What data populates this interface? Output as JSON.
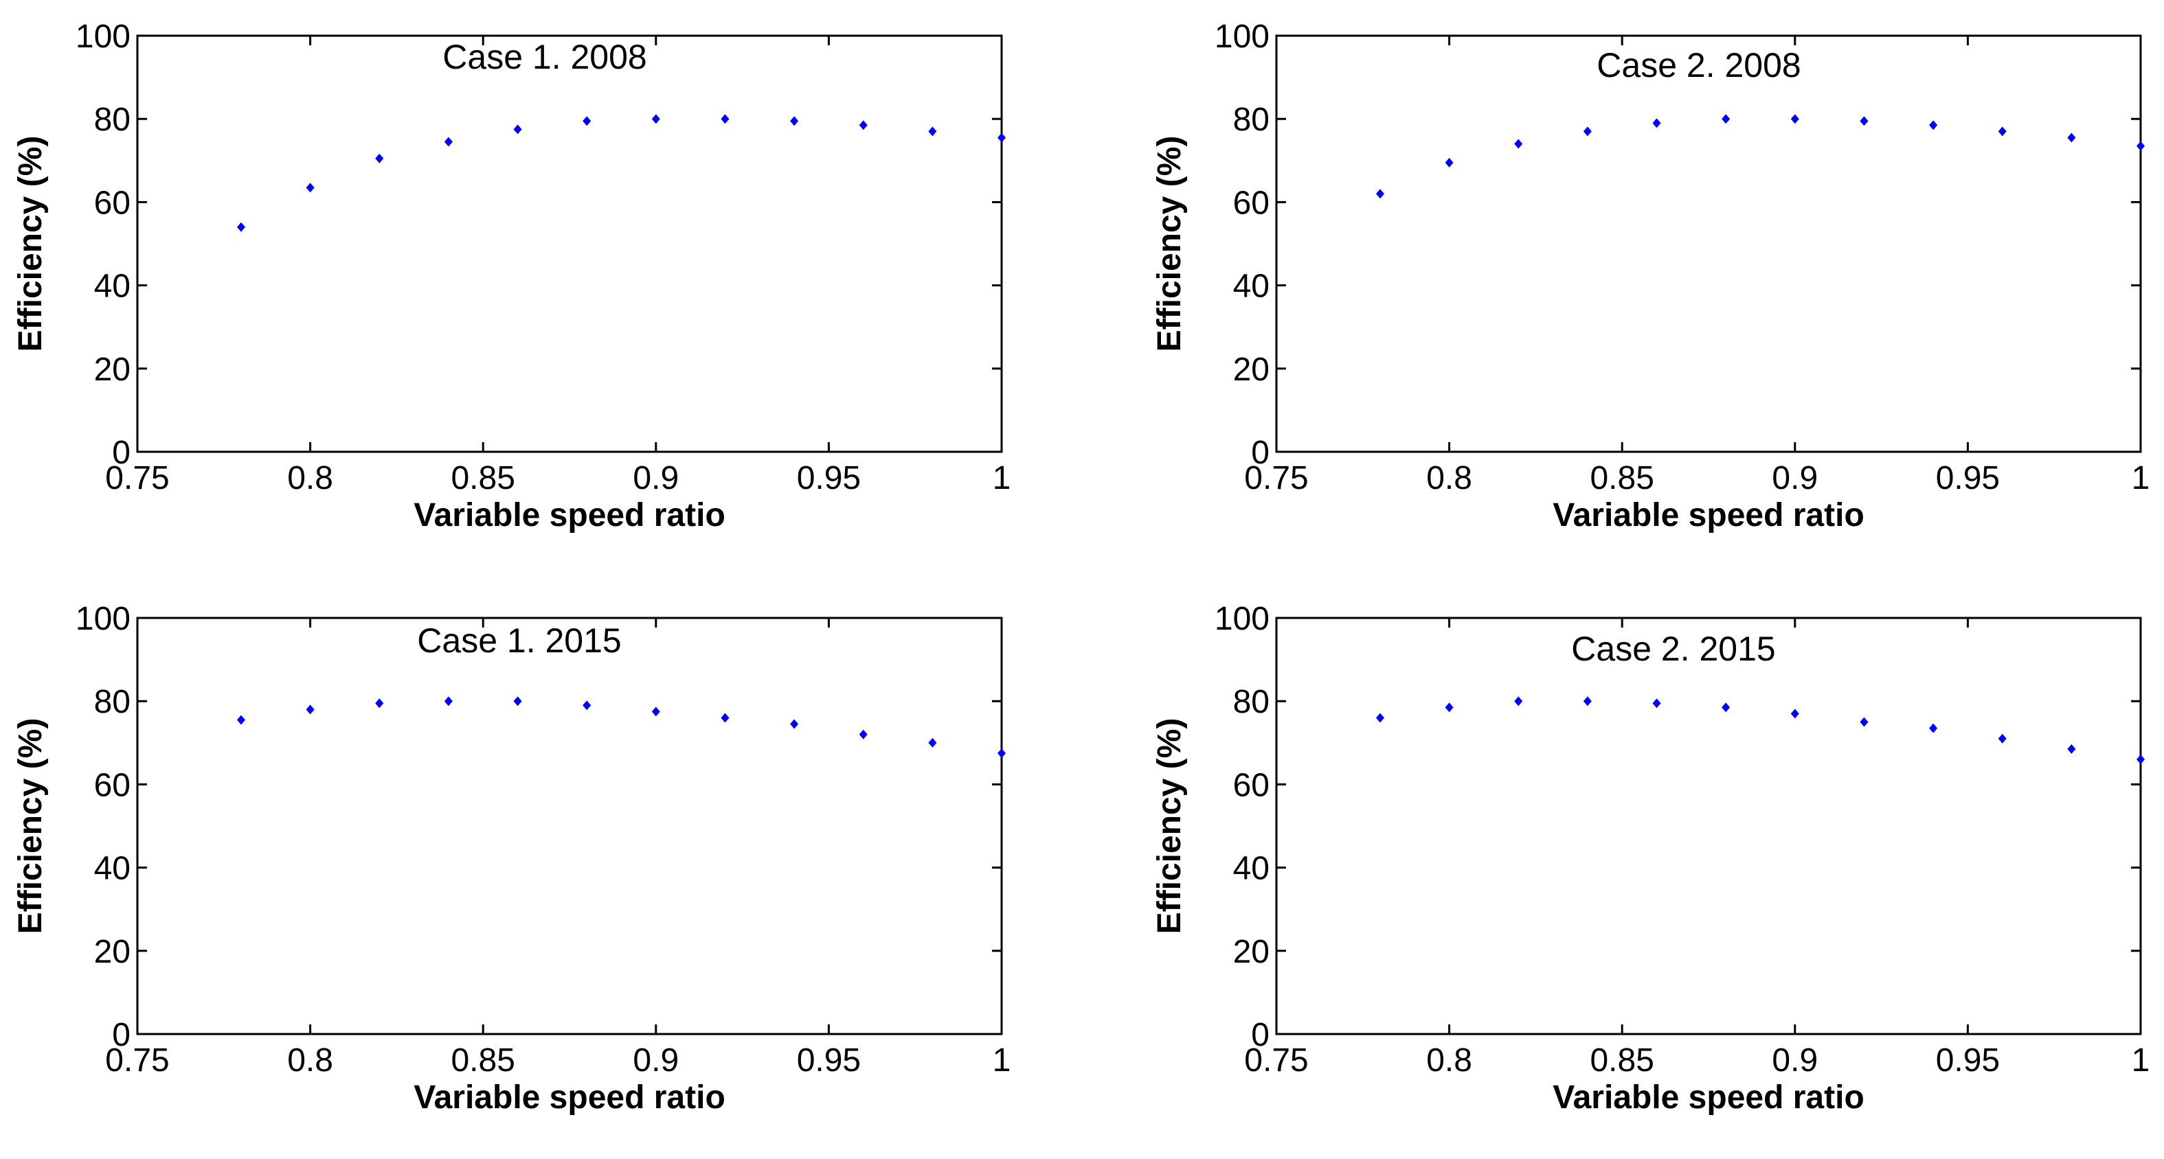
{
  "figure": {
    "marker_color": "#0000ff",
    "panels": 4
  },
  "chart_data": [
    {
      "type": "scatter",
      "title": "Case 1. 2008",
      "xlabel": "Variable speed ratio",
      "ylabel": "Efficiency (%)",
      "xlim": [
        0.75,
        1.0
      ],
      "ylim": [
        0,
        100
      ],
      "xticks": [
        "0.75",
        "0.8",
        "0.85",
        "0.9",
        "0.95",
        "1"
      ],
      "yticks": [
        "0",
        "20",
        "40",
        "60",
        "80",
        "100"
      ],
      "x": [
        0.78,
        0.8,
        0.82,
        0.84,
        0.86,
        0.88,
        0.9,
        0.92,
        0.94,
        0.96,
        0.98,
        1.0
      ],
      "y": [
        54,
        63.5,
        70.5,
        74.5,
        77.5,
        79.5,
        80,
        80,
        79.5,
        78.5,
        77,
        75.5
      ]
    },
    {
      "type": "scatter",
      "title": "Case 2. 2008",
      "xlabel": "Variable speed ratio",
      "ylabel": "Efficiency (%)",
      "xlim": [
        0.75,
        1.0
      ],
      "ylim": [
        0,
        100
      ],
      "xticks": [
        "0.75",
        "0.8",
        "0.85",
        "0.9",
        "0.95",
        "1"
      ],
      "yticks": [
        "0",
        "20",
        "40",
        "60",
        "80",
        "100"
      ],
      "x": [
        0.78,
        0.8,
        0.82,
        0.84,
        0.86,
        0.88,
        0.9,
        0.92,
        0.94,
        0.96,
        0.98,
        1.0
      ],
      "y": [
        62,
        69.5,
        74,
        77,
        79,
        80,
        80,
        79.5,
        78.5,
        77,
        75.5,
        73.5
      ]
    },
    {
      "type": "scatter",
      "title": "Case 1. 2015",
      "xlabel": "Variable speed ratio",
      "ylabel": "Efficiency (%)",
      "xlim": [
        0.75,
        1.0
      ],
      "ylim": [
        0,
        100
      ],
      "xticks": [
        "0.75",
        "0.8",
        "0.85",
        "0.9",
        "0.95",
        "1"
      ],
      "yticks": [
        "0",
        "20",
        "40",
        "60",
        "80",
        "100"
      ],
      "x": [
        0.78,
        0.8,
        0.82,
        0.84,
        0.86,
        0.88,
        0.9,
        0.92,
        0.94,
        0.96,
        0.98,
        1.0
      ],
      "y": [
        75.5,
        78,
        79.5,
        80,
        80,
        79,
        77.5,
        76,
        74.5,
        72,
        70,
        67.5
      ]
    },
    {
      "type": "scatter",
      "title": "Case 2. 2015",
      "xlabel": "Variable speed ratio",
      "ylabel": "Efficiency (%)",
      "xlim": [
        0.75,
        1.0
      ],
      "ylim": [
        0,
        100
      ],
      "xticks": [
        "0.75",
        "0.8",
        "0.85",
        "0.9",
        "0.95",
        "1"
      ],
      "yticks": [
        "0",
        "20",
        "40",
        "60",
        "80",
        "100"
      ],
      "x": [
        0.78,
        0.8,
        0.82,
        0.84,
        0.86,
        0.88,
        0.9,
        0.92,
        0.94,
        0.96,
        0.98,
        1.0
      ],
      "y": [
        76,
        78.5,
        80,
        80,
        79.5,
        78.5,
        77,
        75,
        73.5,
        71,
        68.5,
        66
      ]
    }
  ]
}
